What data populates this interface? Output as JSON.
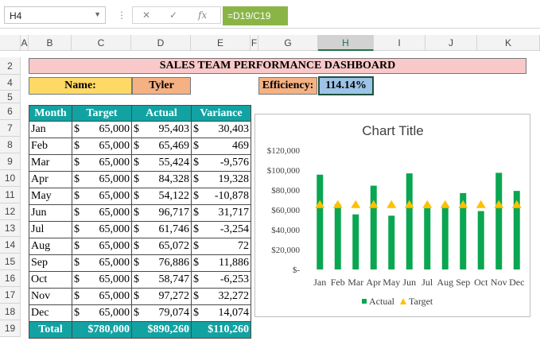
{
  "formula_bar": {
    "name_box": "H4",
    "formula": "=D19/C19"
  },
  "columns": [
    "A",
    "B",
    "C",
    "D",
    "E",
    "F",
    "G",
    "H",
    "I",
    "J",
    "K"
  ],
  "rows": [
    "2",
    "4",
    "5",
    "6",
    "7",
    "8",
    "9",
    "10",
    "11",
    "12",
    "13",
    "14",
    "15",
    "16",
    "17",
    "18",
    "19"
  ],
  "dashboard": {
    "title": "SALES TEAM PERFORMANCE DASHBOARD",
    "name_label": "Name:",
    "name_value": "Tyler",
    "efficiency_label": "Efficiency:",
    "efficiency_value": "114.14%"
  },
  "table": {
    "headers": [
      "Month",
      "Target",
      "Actual",
      "Variance"
    ],
    "rows": [
      [
        "Jan",
        "65,000",
        "95,403",
        "30,403"
      ],
      [
        "Feb",
        "65,000",
        "65,469",
        "469"
      ],
      [
        "Mar",
        "65,000",
        "55,424",
        "-9,576"
      ],
      [
        "Apr",
        "65,000",
        "84,328",
        "19,328"
      ],
      [
        "May",
        "65,000",
        "54,122",
        "-10,878"
      ],
      [
        "Jun",
        "65,000",
        "96,717",
        "31,717"
      ],
      [
        "Jul",
        "65,000",
        "61,746",
        "-3,254"
      ],
      [
        "Aug",
        "65,000",
        "65,072",
        "72"
      ],
      [
        "Sep",
        "65,000",
        "76,886",
        "11,886"
      ],
      [
        "Oct",
        "65,000",
        "58,747",
        "-6,253"
      ],
      [
        "Nov",
        "65,000",
        "97,272",
        "32,272"
      ],
      [
        "Dec",
        "65,000",
        "79,074",
        "14,074"
      ]
    ],
    "total": [
      "Total",
      "$780,000",
      "$890,260",
      "$110,260"
    ],
    "currency": "$"
  },
  "chart_data": {
    "type": "bar",
    "title": "Chart Title",
    "categories": [
      "Jan",
      "Feb",
      "Mar",
      "Apr",
      "May",
      "Jun",
      "Jul",
      "Aug",
      "Sep",
      "Oct",
      "Nov",
      "Dec"
    ],
    "series": [
      {
        "name": "Actual",
        "type": "bar",
        "values": [
          95403,
          65469,
          55424,
          84328,
          54122,
          96717,
          61746,
          65072,
          76886,
          58747,
          97272,
          79074
        ]
      },
      {
        "name": "Target",
        "type": "marker",
        "values": [
          65000,
          65000,
          65000,
          65000,
          65000,
          65000,
          65000,
          65000,
          65000,
          65000,
          65000,
          65000
        ]
      }
    ],
    "yticks": [
      "$-",
      "$20,000",
      "$40,000",
      "$60,000",
      "$80,000",
      "$100,000",
      "$120,000"
    ],
    "ylim": [
      0,
      120000
    ],
    "legend": "bottom",
    "colors": {
      "actual": "#0aa651",
      "target": "#ffc000"
    }
  },
  "colors": {
    "header_fill": "#12a2a2",
    "title_fill": "#f9c9c9",
    "name_label_fill": "#ffd966",
    "name_value_fill": "#f4b183",
    "efficiency_value_fill": "#9dc3e6"
  }
}
